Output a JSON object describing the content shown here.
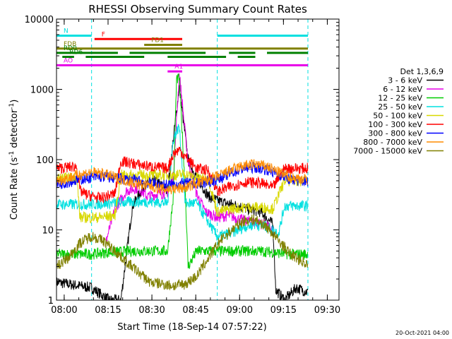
{
  "chart_data": {
    "type": "line",
    "title": "RHESSI Observing Summary Count Rates",
    "xlabel": "Start Time (18-Sep-14 07:57:22)",
    "ylabel": "Count Rate (s⁻¹ detector⁻¹)",
    "ylabel_base": "Count Rate (s",
    "ylabel_sup1": "-1",
    "ylabel_mid": " detector",
    "ylabel_sup2": "-1",
    "ylabel_end": ")",
    "y_scale": "log",
    "ylim": [
      1,
      10000
    ],
    "xlim": [
      "07:57:22",
      "09:34:00"
    ],
    "x_ticks": [
      "08:00",
      "08:15",
      "08:30",
      "08:45",
      "09:00",
      "09:15",
      "09:30"
    ],
    "y_ticks": [
      "1",
      "10",
      "100",
      "1000",
      "10000"
    ],
    "legend_title": "Det 1,3,6,9",
    "legend_position": "right",
    "timestamp": "20-Oct-2021 04:00",
    "series": [
      {
        "name": "3 - 6 keV",
        "color": "#000000",
        "values": [
          [
            0,
            1.8
          ],
          [
            12,
            1.5
          ],
          [
            18,
            1.0
          ],
          [
            22,
            1.0
          ],
          [
            26,
            22
          ],
          [
            30,
            42
          ],
          [
            34,
            50
          ],
          [
            38,
            36
          ],
          [
            42,
            1100
          ],
          [
            45,
            100
          ],
          [
            48,
            55
          ],
          [
            52,
            30
          ],
          [
            55,
            26
          ],
          [
            58,
            24
          ],
          [
            62,
            22
          ],
          [
            65,
            20
          ],
          [
            70,
            18
          ],
          [
            74,
            12
          ],
          [
            75,
            1.4
          ],
          [
            78,
            1.0
          ],
          [
            82,
            1.5
          ],
          [
            86,
            1.3
          ]
        ]
      },
      {
        "name": "6 - 12 keV",
        "color": "#e800e8",
        "values": [
          [
            17,
            7
          ],
          [
            20,
            20
          ],
          [
            24,
            36
          ],
          [
            28,
            40
          ],
          [
            31,
            30
          ],
          [
            34,
            32
          ],
          [
            38,
            34
          ],
          [
            40,
            60
          ],
          [
            42,
            1700
          ],
          [
            45,
            95
          ],
          [
            48,
            32
          ],
          [
            51,
            18
          ],
          [
            55,
            15
          ],
          [
            59,
            16
          ],
          [
            63,
            14
          ],
          [
            67,
            13
          ],
          [
            71,
            12
          ],
          [
            74,
            10
          ]
        ]
      },
      {
        "name": "12 - 25 keV",
        "color": "#00cc00",
        "values": [
          [
            0,
            4.5
          ],
          [
            12,
            4.5
          ],
          [
            18,
            4.8
          ],
          [
            26,
            5
          ],
          [
            34,
            5
          ],
          [
            38,
            5
          ],
          [
            40,
            30
          ],
          [
            41,
            1300
          ],
          [
            42,
            1500
          ],
          [
            44,
            40
          ],
          [
            45,
            3
          ],
          [
            48,
            5
          ],
          [
            55,
            5
          ],
          [
            60,
            5
          ],
          [
            70,
            5
          ],
          [
            80,
            4.5
          ],
          [
            86,
            4.5
          ]
        ]
      },
      {
        "name": "25 - 50 keV",
        "color": "#00e0e0",
        "values": [
          [
            0,
            23
          ],
          [
            12,
            23
          ],
          [
            18,
            24
          ],
          [
            26,
            25
          ],
          [
            34,
            25
          ],
          [
            38,
            24
          ],
          [
            40,
            200
          ],
          [
            42,
            300
          ],
          [
            44,
            24
          ],
          [
            48,
            24
          ],
          [
            55,
            8
          ],
          [
            60,
            9
          ],
          [
            64,
            11
          ],
          [
            68,
            12
          ],
          [
            72,
            11
          ],
          [
            76,
            9
          ],
          [
            78,
            22
          ],
          [
            86,
            22
          ]
        ]
      },
      {
        "name": "50 - 100 keV",
        "color": "#d8d800",
        "values": [
          [
            0,
            54
          ],
          [
            7,
            55
          ],
          [
            8,
            15
          ],
          [
            14,
            15
          ],
          [
            20,
            16
          ],
          [
            22,
            60
          ],
          [
            34,
            60
          ],
          [
            40,
            60
          ],
          [
            44,
            62
          ],
          [
            48,
            55
          ],
          [
            52,
            52
          ],
          [
            55,
            18
          ],
          [
            60,
            20
          ],
          [
            65,
            21
          ],
          [
            70,
            21
          ],
          [
            74,
            20
          ],
          [
            78,
            50
          ],
          [
            86,
            50
          ]
        ]
      },
      {
        "name": "100 - 300 keV",
        "color": "#ff0000",
        "values": [
          [
            0,
            75
          ],
          [
            7,
            80
          ],
          [
            8,
            36
          ],
          [
            10,
            32
          ],
          [
            15,
            28
          ],
          [
            20,
            33
          ],
          [
            22,
            95
          ],
          [
            26,
            88
          ],
          [
            30,
            82
          ],
          [
            34,
            78
          ],
          [
            38,
            75
          ],
          [
            40,
            120
          ],
          [
            42,
            140
          ],
          [
            44,
            110
          ],
          [
            48,
            75
          ],
          [
            52,
            70
          ],
          [
            55,
            35
          ],
          [
            60,
            42
          ],
          [
            65,
            48
          ],
          [
            70,
            46
          ],
          [
            74,
            40
          ],
          [
            78,
            75
          ],
          [
            86,
            75
          ]
        ]
      },
      {
        "name": "300 - 800 keV",
        "color": "#0000ff",
        "values": [
          [
            0,
            44
          ],
          [
            4,
            48
          ],
          [
            8,
            52
          ],
          [
            12,
            56
          ],
          [
            16,
            57
          ],
          [
            20,
            55
          ],
          [
            24,
            52
          ],
          [
            28,
            50
          ],
          [
            32,
            46
          ],
          [
            36,
            44
          ],
          [
            40,
            44
          ],
          [
            44,
            46
          ],
          [
            48,
            46
          ],
          [
            52,
            48
          ],
          [
            56,
            55
          ],
          [
            60,
            65
          ],
          [
            64,
            75
          ],
          [
            68,
            78
          ],
          [
            72,
            72
          ],
          [
            76,
            62
          ],
          [
            80,
            52
          ],
          [
            86,
            48
          ]
        ]
      },
      {
        "name": "800 - 7000 keV",
        "color": "#ff8c00",
        "values": [
          [
            0,
            50
          ],
          [
            4,
            55
          ],
          [
            8,
            62
          ],
          [
            12,
            66
          ],
          [
            16,
            63
          ],
          [
            20,
            56
          ],
          [
            24,
            50
          ],
          [
            28,
            45
          ],
          [
            32,
            42
          ],
          [
            36,
            38
          ],
          [
            40,
            38
          ],
          [
            44,
            40
          ],
          [
            48,
            46
          ],
          [
            52,
            52
          ],
          [
            56,
            60
          ],
          [
            60,
            72
          ],
          [
            64,
            82
          ],
          [
            68,
            86
          ],
          [
            72,
            80
          ],
          [
            76,
            66
          ],
          [
            80,
            56
          ],
          [
            86,
            52
          ]
        ]
      },
      {
        "name": "7000 - 15000 keV",
        "color": "#808000",
        "values": [
          [
            0,
            3
          ],
          [
            4,
            4
          ],
          [
            8,
            6.5
          ],
          [
            12,
            8.2
          ],
          [
            16,
            7
          ],
          [
            20,
            5
          ],
          [
            24,
            3.5
          ],
          [
            28,
            2.5
          ],
          [
            32,
            1.8
          ],
          [
            36,
            1.7
          ],
          [
            40,
            1.6
          ],
          [
            44,
            1.7
          ],
          [
            48,
            2.2
          ],
          [
            52,
            4
          ],
          [
            56,
            7
          ],
          [
            60,
            10
          ],
          [
            64,
            13.5
          ],
          [
            68,
            14
          ],
          [
            72,
            11
          ],
          [
            76,
            7
          ],
          [
            80,
            4.5
          ],
          [
            86,
            3.2
          ]
        ]
      }
    ],
    "flag_bars": [
      {
        "label": "N",
        "color": "#00e0e0",
        "y": 5800,
        "segments": [
          [
            0,
            12
          ],
          [
            55,
            86
          ]
        ]
      },
      {
        "label": "F",
        "color": "#ff0000",
        "y": 5200,
        "segments": [
          [
            13,
            43
          ]
        ]
      },
      {
        "label": "FD1",
        "color": "#808000",
        "y": 4300,
        "segments": [
          [
            30,
            43
          ]
        ]
      },
      {
        "label": "FDB",
        "color": "#808000",
        "y": 3800,
        "segments": [
          [
            0,
            86
          ]
        ]
      },
      {
        "label": "RD0",
        "color": "#008000",
        "y": 3300,
        "segments": [
          [
            0,
            21
          ],
          [
            25,
            51
          ],
          [
            59,
            68
          ],
          [
            72,
            86
          ]
        ]
      },
      {
        "label": "RD6",
        "color": "#008000",
        "y": 2900,
        "segments": [
          [
            2,
            6
          ],
          [
            10,
            30
          ],
          [
            38,
            58
          ],
          [
            62,
            68
          ]
        ]
      },
      {
        "label": "AO",
        "color": "#e800e8",
        "y": 2200,
        "segments": [
          [
            0,
            86
          ]
        ]
      },
      {
        "label": "A1",
        "color": "#e800e8",
        "y": 1800,
        "segments": [
          [
            38,
            43
          ]
        ]
      }
    ],
    "saa_lines": [
      0,
      12,
      55,
      86
    ]
  }
}
